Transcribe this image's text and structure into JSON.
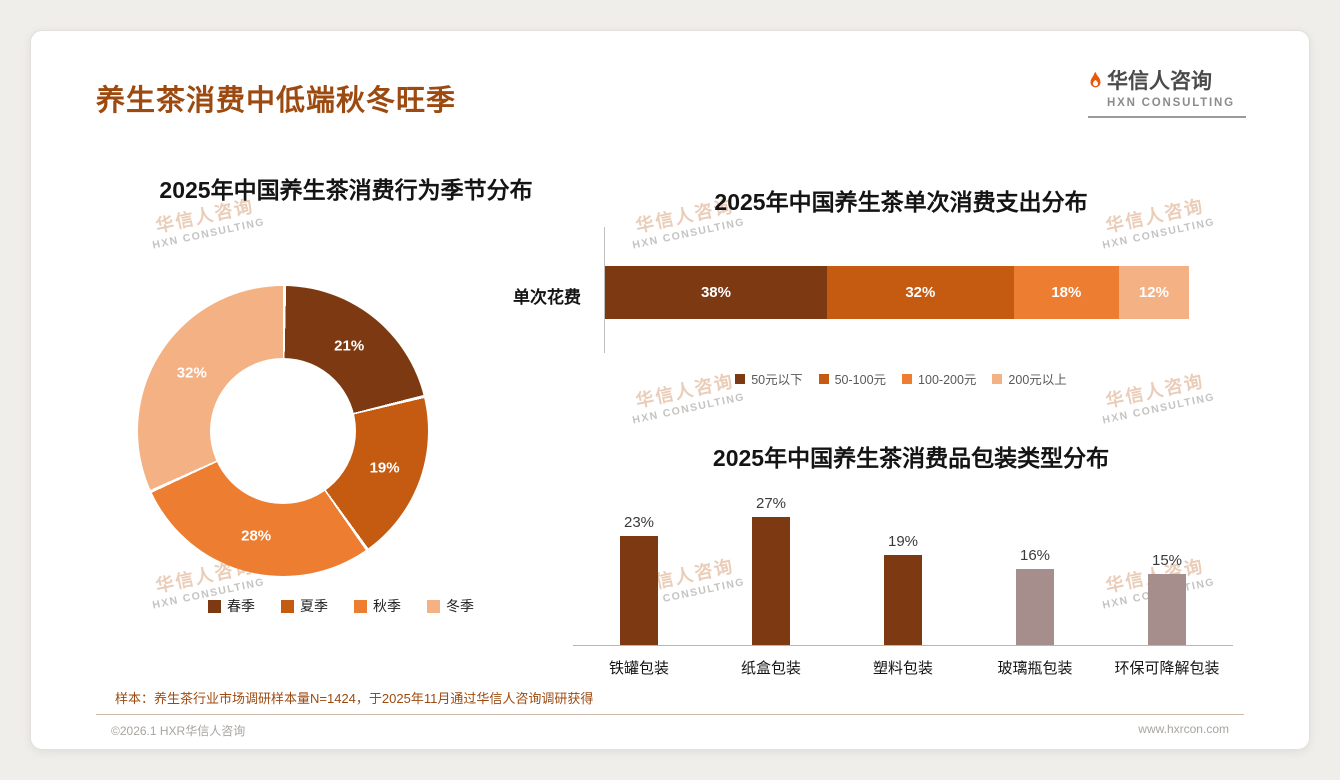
{
  "page": {
    "title": "养生茶消费中低端秋冬旺季",
    "logo": {
      "cn": "华信人咨询",
      "en": "HXN CONSULTING"
    },
    "watermark": {
      "cn": "华信人咨询",
      "en": "HXN CONSULTING"
    },
    "sample_note": "样本：养生茶行业市场调研样本量N=1424，于2025年11月通过华信人咨询调研获得",
    "footer": {
      "left": "©2026.1 HXR华信人咨询",
      "right": "www.hxrcon.com"
    }
  },
  "colors": {
    "accent_title": "#9C4A10",
    "palette": [
      "#7D3A12",
      "#C55A11",
      "#ED7D31",
      "#F4B183"
    ],
    "bar_alt": "#A58E8C",
    "footer_text": "#A8A4A0"
  },
  "chart_data": [
    {
      "type": "pie",
      "donut": true,
      "title": "2025年中国养生茶消费行为季节分布",
      "labels": [
        "春季",
        "夏季",
        "秋季",
        "冬季"
      ],
      "values": [
        21,
        19,
        28,
        32
      ],
      "unit": "%",
      "colors": [
        "#7D3A12",
        "#C55A11",
        "#ED7D31",
        "#F4B183"
      ],
      "start_angle_deg": 0,
      "direction": "clockwise",
      "legend_position": "bottom"
    },
    {
      "type": "bar",
      "variant": "horizontal-stacked",
      "title": "2025年中国养生茶单次消费支出分布",
      "category_label": "单次花费",
      "series": [
        {
          "name": "50元以下",
          "value": 38,
          "color": "#7D3A12"
        },
        {
          "name": "50-100元",
          "value": 32,
          "color": "#C55A11"
        },
        {
          "name": "100-200元",
          "value": 18,
          "color": "#ED7D31"
        },
        {
          "name": "200元以上",
          "value": 12,
          "color": "#F4B183"
        }
      ],
      "unit": "%",
      "xlim": [
        0,
        100
      ],
      "legend_position": "bottom"
    },
    {
      "type": "bar",
      "variant": "vertical",
      "title": "2025年中国养生茶消费品包装类型分布",
      "categories": [
        "铁罐包装",
        "纸盒包装",
        "塑料包装",
        "玻璃瓶包装",
        "环保可降解包装"
      ],
      "values": [
        23,
        27,
        19,
        16,
        15
      ],
      "unit": "%",
      "colors": [
        "#7D3A12",
        "#7D3A12",
        "#7D3A12",
        "#A58E8C",
        "#A58E8C"
      ],
      "ylim": [
        0,
        30
      ],
      "value_labels": true,
      "grid": false
    }
  ]
}
